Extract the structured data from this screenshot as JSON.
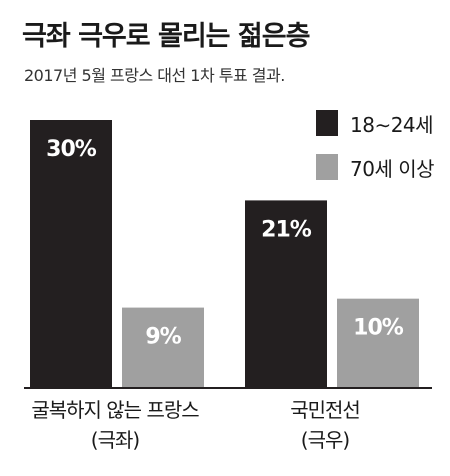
{
  "title": "극좌 극우로 몰리는 젊은층",
  "subtitle": "2017년 5월 프랑스 대선 1차 투표 결과.",
  "chart_data": {
    "type": "bar",
    "categories": [
      {
        "line1": "굴복하지 않는 프랑스",
        "line2": "(극좌)"
      },
      {
        "line1": "국민전선",
        "line2": "(극우)"
      }
    ],
    "series": [
      {
        "name": "18∼24세",
        "color": "#231f20",
        "values": [
          30,
          21
        ],
        "labels": [
          "30%",
          "21%"
        ],
        "label_color": "#ffffff"
      },
      {
        "name": "70세 이상",
        "color": "#a0a0a0",
        "values": [
          9,
          10
        ],
        "labels": [
          "9%",
          "10%"
        ],
        "label_color": "#ffffff"
      }
    ],
    "ylim": [
      0,
      30
    ],
    "grid": false,
    "legend": "top-right"
  }
}
